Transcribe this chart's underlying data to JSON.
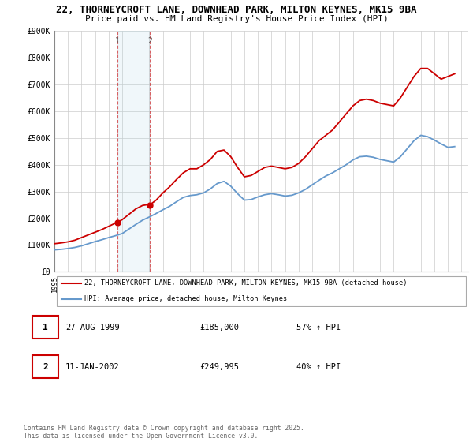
{
  "title": "22, THORNEYCROFT LANE, DOWNHEAD PARK, MILTON KEYNES, MK15 9BA",
  "subtitle": "Price paid vs. HM Land Registry's House Price Index (HPI)",
  "title_fontsize": 9.0,
  "subtitle_fontsize": 8.0,
  "ylim": [
    0,
    900000
  ],
  "yticks": [
    0,
    100000,
    200000,
    300000,
    400000,
    500000,
    600000,
    700000,
    800000,
    900000
  ],
  "ytick_labels": [
    "£0",
    "£100K",
    "£200K",
    "£300K",
    "£400K",
    "£500K",
    "£600K",
    "£700K",
    "£800K",
    "£900K"
  ],
  "xlim_start": 1995.0,
  "xlim_end": 2025.5,
  "line_color_red": "#cc0000",
  "line_color_blue": "#6699cc",
  "sale1_date": 1999.65,
  "sale1_price": 185000,
  "sale2_date": 2002.03,
  "sale2_price": 249995,
  "legend_label_red": "22, THORNEYCROFT LANE, DOWNHEAD PARK, MILTON KEYNES, MK15 9BA (detached house)",
  "legend_label_blue": "HPI: Average price, detached house, Milton Keynes",
  "sale_table": [
    {
      "num": 1,
      "date": "27-AUG-1999",
      "price": "£185,000",
      "change": "57% ↑ HPI"
    },
    {
      "num": 2,
      "date": "11-JAN-2002",
      "price": "£249,995",
      "change": "40% ↑ HPI"
    }
  ],
  "footnote": "Contains HM Land Registry data © Crown copyright and database right 2025.\nThis data is licensed under the Open Government Licence v3.0.",
  "red_years": [
    1995.0,
    1995.5,
    1996.0,
    1996.5,
    1997.0,
    1997.5,
    1998.0,
    1998.5,
    1999.0,
    1999.5,
    1999.65,
    2000.0,
    2000.5,
    2001.0,
    2001.5,
    2002.0,
    2002.03,
    2002.5,
    2003.0,
    2003.5,
    2004.0,
    2004.5,
    2005.0,
    2005.5,
    2006.0,
    2006.5,
    2007.0,
    2007.5,
    2008.0,
    2008.5,
    2009.0,
    2009.5,
    2010.0,
    2010.5,
    2011.0,
    2011.5,
    2012.0,
    2012.5,
    2013.0,
    2013.5,
    2014.0,
    2014.5,
    2015.0,
    2015.5,
    2016.0,
    2016.5,
    2017.0,
    2017.5,
    2018.0,
    2018.5,
    2019.0,
    2019.5,
    2020.0,
    2020.5,
    2021.0,
    2021.5,
    2022.0,
    2022.5,
    2023.0,
    2023.5,
    2024.0,
    2024.5
  ],
  "red_values": [
    105000,
    108000,
    112000,
    118000,
    128000,
    138000,
    148000,
    158000,
    170000,
    182000,
    185000,
    195000,
    215000,
    235000,
    248000,
    252000,
    249995,
    268000,
    295000,
    318000,
    345000,
    370000,
    385000,
    385000,
    400000,
    420000,
    450000,
    455000,
    430000,
    390000,
    355000,
    360000,
    375000,
    390000,
    395000,
    390000,
    385000,
    390000,
    405000,
    430000,
    460000,
    490000,
    510000,
    530000,
    560000,
    590000,
    620000,
    640000,
    645000,
    640000,
    630000,
    625000,
    620000,
    650000,
    690000,
    730000,
    760000,
    760000,
    740000,
    720000,
    730000,
    740000
  ],
  "blue_years": [
    1995.0,
    1995.5,
    1996.0,
    1996.5,
    1997.0,
    1997.5,
    1998.0,
    1998.5,
    1999.0,
    1999.5,
    2000.0,
    2000.5,
    2001.0,
    2001.5,
    2002.0,
    2002.5,
    2003.0,
    2003.5,
    2004.0,
    2004.5,
    2005.0,
    2005.5,
    2006.0,
    2006.5,
    2007.0,
    2007.5,
    2008.0,
    2008.5,
    2009.0,
    2009.5,
    2010.0,
    2010.5,
    2011.0,
    2011.5,
    2012.0,
    2012.5,
    2013.0,
    2013.5,
    2014.0,
    2014.5,
    2015.0,
    2015.5,
    2016.0,
    2016.5,
    2017.0,
    2017.5,
    2018.0,
    2018.5,
    2019.0,
    2019.5,
    2020.0,
    2020.5,
    2021.0,
    2021.5,
    2022.0,
    2022.5,
    2023.0,
    2023.5,
    2024.0,
    2024.5
  ],
  "blue_values": [
    82000,
    84000,
    87000,
    91000,
    97000,
    105000,
    113000,
    120000,
    128000,
    135000,
    143000,
    160000,
    177000,
    193000,
    205000,
    218000,
    232000,
    245000,
    262000,
    278000,
    285000,
    288000,
    295000,
    310000,
    330000,
    338000,
    320000,
    292000,
    268000,
    270000,
    280000,
    288000,
    292000,
    288000,
    283000,
    286000,
    295000,
    308000,
    325000,
    342000,
    358000,
    370000,
    385000,
    400000,
    418000,
    430000,
    432000,
    428000,
    420000,
    415000,
    410000,
    430000,
    460000,
    490000,
    510000,
    505000,
    492000,
    478000,
    465000,
    468000
  ]
}
